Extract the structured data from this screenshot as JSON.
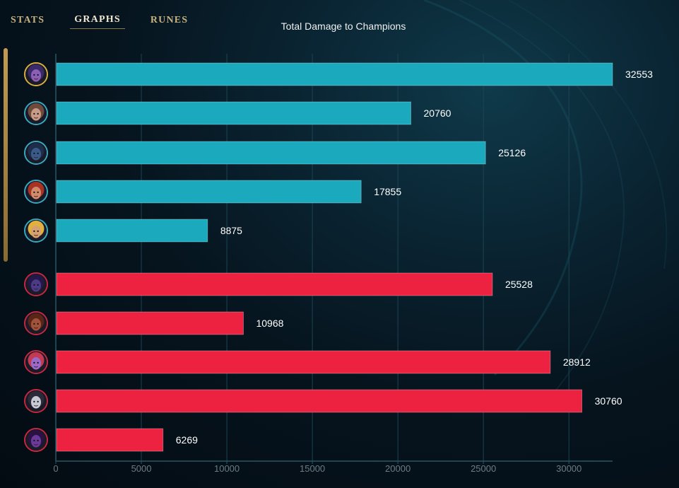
{
  "tabs": [
    {
      "label": "STATS",
      "active": false
    },
    {
      "label": "GRAPHS",
      "active": true
    },
    {
      "label": "RUNES",
      "active": false
    }
  ],
  "chart_data": {
    "type": "bar",
    "orientation": "horizontal",
    "title": "Total Damage to Champions",
    "xlabel": "",
    "ylabel": "",
    "xlim": [
      0,
      32553
    ],
    "x_ticks": [
      0,
      5000,
      10000,
      15000,
      20000,
      25000,
      30000
    ],
    "grid": true,
    "series": [
      {
        "team": "blue",
        "color": "#1ba9be",
        "values": [
          32553,
          20760,
          25126,
          17855,
          8875
        ],
        "value_labels": [
          "32553",
          "20760",
          "25126",
          "17855",
          "8875"
        ]
      },
      {
        "team": "red",
        "color": "#ed2241",
        "values": [
          25528,
          10968,
          28912,
          30760,
          6269
        ],
        "value_labels": [
          "25528",
          "10968",
          "28912",
          "30760",
          "6269"
        ]
      }
    ]
  },
  "players": [
    {
      "team": "blue",
      "ring": "#d8b040",
      "face": "#8a5fb5",
      "hair": "#3b2a6a",
      "icon": "champion-portrait-icon"
    },
    {
      "team": "blue",
      "ring": "#3aa9c0",
      "face": "#c79b85",
      "hair": "#6d4a3c",
      "icon": "champion-portrait-icon"
    },
    {
      "team": "blue",
      "ring": "#3aa9c0",
      "face": "#3a5a8a",
      "hair": "#1e2d4a",
      "icon": "champion-portrait-icon"
    },
    {
      "team": "blue",
      "ring": "#3aa9c0",
      "face": "#d18a6a",
      "hair": "#a83224",
      "icon": "champion-portrait-icon"
    },
    {
      "team": "blue",
      "ring": "#3aa9c0",
      "face": "#d6a070",
      "hair": "#e0b040",
      "icon": "champion-portrait-icon"
    },
    {
      "team": "red",
      "ring": "#c7283f",
      "face": "#4d3a86",
      "hair": "#24184a",
      "icon": "champion-portrait-icon"
    },
    {
      "team": "red",
      "ring": "#c7283f",
      "face": "#a0523a",
      "hair": "#5a2416",
      "icon": "champion-portrait-icon"
    },
    {
      "team": "red",
      "ring": "#c7283f",
      "face": "#9a6ac8",
      "hair": "#c43a52",
      "icon": "champion-portrait-icon"
    },
    {
      "team": "red",
      "ring": "#c7283f",
      "face": "#c8c8d4",
      "hair": "#2a2a3a",
      "icon": "champion-portrait-icon"
    },
    {
      "team": "red",
      "ring": "#c7283f",
      "face": "#6a3a9a",
      "hair": "#2a1244",
      "icon": "champion-portrait-icon"
    }
  ]
}
